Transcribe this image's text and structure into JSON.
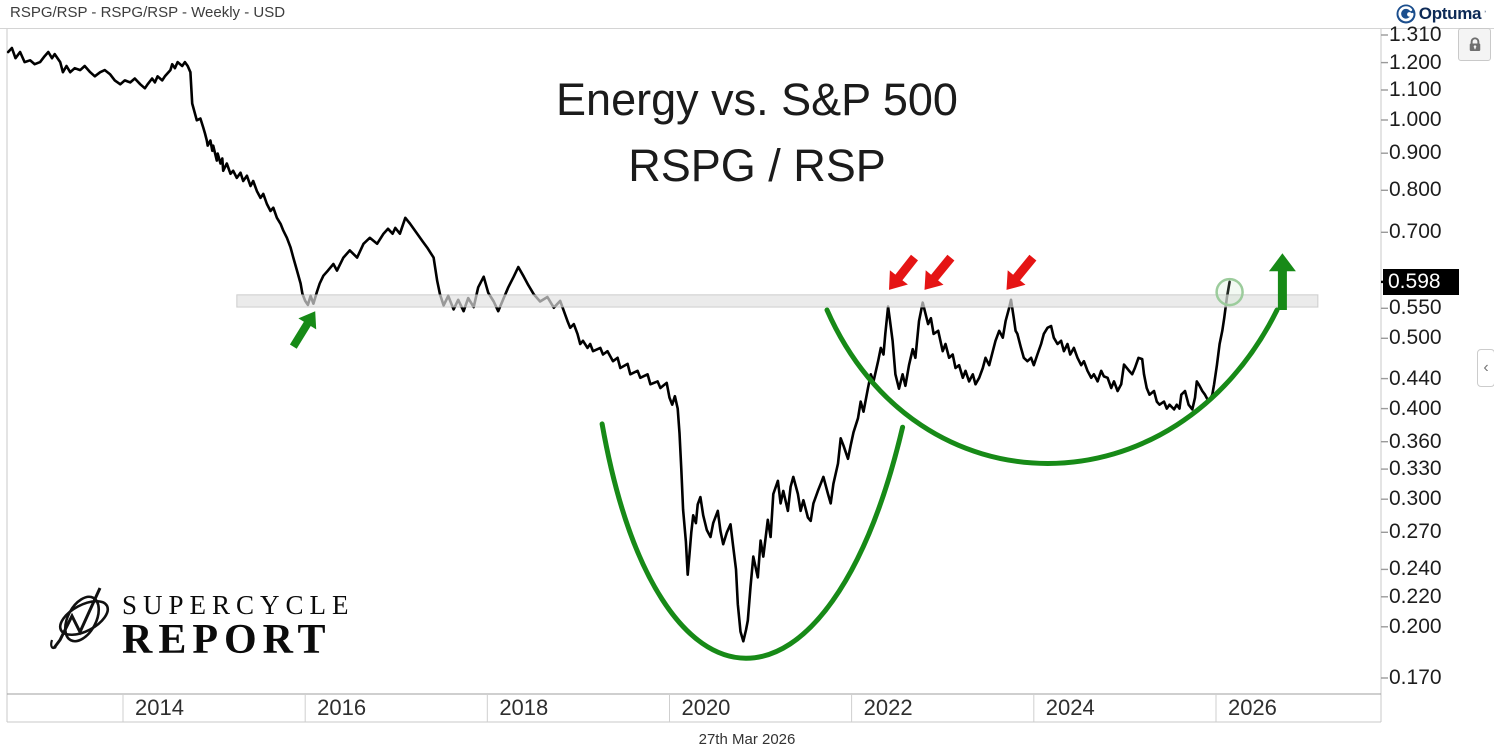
{
  "window": {
    "title": "RSPG/RSP - RSPG/RSP - Weekly - USD",
    "brand": "Optuma"
  },
  "chart_title": {
    "line1": "Energy vs. S&P 500",
    "line2": "RSPG / RSP"
  },
  "watermark": {
    "line1": "SUPERCYCLE",
    "line2": "REPORT"
  },
  "footer": {
    "date_label": "27th Mar 2026"
  },
  "price_axis": {
    "ticks": [
      "1.310",
      "1.200",
      "1.100",
      "1.000",
      "0.900",
      "0.800",
      "0.700",
      "0.550",
      "0.500",
      "0.440",
      "0.400",
      "0.360",
      "0.330",
      "0.300",
      "0.270",
      "0.240",
      "0.220",
      "0.200",
      "0.170"
    ],
    "last_price": "0.598"
  },
  "time_axis": {
    "years": [
      2014,
      2016,
      2018,
      2020,
      2022,
      2024,
      2026
    ]
  },
  "colors": {
    "price_line": "#000000",
    "accent_green": "#178a17",
    "alert_red": "#e51414",
    "band_fill": "rgba(226,226,226,0.68)",
    "band_stroke": "rgba(175,175,175,0.55)",
    "circle_green": "#9ccc9c",
    "frame": "#c8c8c8",
    "tick": "#9a9a9a",
    "last_price_bg": "#000000",
    "brand_blue": "#1b4e8d"
  },
  "chart_data": {
    "type": "line",
    "title": "Energy vs. S&P 500",
    "subtitle": "RSPG / RSP",
    "series_name": "RSPG/RSP Weekly USD",
    "y_scale": "log",
    "xlim": [
      2012.74,
      2027.83
    ],
    "ylim": [
      0.162,
      1.331
    ],
    "x_ticks": [
      2014,
      2016,
      2018,
      2020,
      2022,
      2024,
      2026
    ],
    "y_ticks": [
      1.31,
      1.2,
      1.1,
      1.0,
      0.9,
      0.8,
      0.7,
      0.55,
      0.5,
      0.44,
      0.4,
      0.36,
      0.33,
      0.3,
      0.27,
      0.24,
      0.22,
      0.2,
      0.17
    ],
    "last_value": 0.598,
    "points": [
      [
        2012.74,
        1.241
      ],
      [
        2012.78,
        1.257
      ],
      [
        2012.82,
        1.217
      ],
      [
        2012.87,
        1.241
      ],
      [
        2012.92,
        1.202
      ],
      [
        2012.98,
        1.209
      ],
      [
        2013.03,
        1.194
      ],
      [
        2013.09,
        1.202
      ],
      [
        2013.14,
        1.225
      ],
      [
        2013.18,
        1.241
      ],
      [
        2013.22,
        1.217
      ],
      [
        2013.25,
        1.233
      ],
      [
        2013.31,
        1.202
      ],
      [
        2013.34,
        1.164
      ],
      [
        2013.38,
        1.187
      ],
      [
        2013.42,
        1.164
      ],
      [
        2013.47,
        1.179
      ],
      [
        2013.53,
        1.172
      ],
      [
        2013.58,
        1.187
      ],
      [
        2013.64,
        1.164
      ],
      [
        2013.69,
        1.149
      ],
      [
        2013.75,
        1.164
      ],
      [
        2013.8,
        1.172
      ],
      [
        2013.86,
        1.156
      ],
      [
        2013.91,
        1.134
      ],
      [
        2013.97,
        1.12
      ],
      [
        2014.02,
        1.134
      ],
      [
        2014.08,
        1.127
      ],
      [
        2014.13,
        1.141
      ],
      [
        2014.19,
        1.12
      ],
      [
        2014.24,
        1.106
      ],
      [
        2014.27,
        1.12
      ],
      [
        2014.32,
        1.141
      ],
      [
        2014.35,
        1.127
      ],
      [
        2014.38,
        1.149
      ],
      [
        2014.43,
        1.134
      ],
      [
        2014.46,
        1.149
      ],
      [
        2014.52,
        1.172
      ],
      [
        2014.54,
        1.194
      ],
      [
        2014.57,
        1.179
      ],
      [
        2014.6,
        1.202
      ],
      [
        2014.65,
        1.187
      ],
      [
        2014.68,
        1.202
      ],
      [
        2014.71,
        1.187
      ],
      [
        2014.74,
        1.164
      ],
      [
        2014.76,
        1.054
      ],
      [
        2014.81,
        0.999
      ],
      [
        2014.85,
        1.005
      ],
      [
        2014.88,
        0.977
      ],
      [
        2014.9,
        0.958
      ],
      [
        2014.92,
        0.937
      ],
      [
        2014.93,
        0.922
      ],
      [
        2014.96,
        0.937
      ],
      [
        2014.98,
        0.907
      ],
      [
        2014.99,
        0.922
      ],
      [
        2015.03,
        0.879
      ],
      [
        2015.04,
        0.899
      ],
      [
        2015.07,
        0.871
      ],
      [
        2015.09,
        0.885
      ],
      [
        2015.1,
        0.851
      ],
      [
        2015.14,
        0.871
      ],
      [
        2015.18,
        0.843
      ],
      [
        2015.21,
        0.851
      ],
      [
        2015.25,
        0.832
      ],
      [
        2015.29,
        0.846
      ],
      [
        2015.32,
        0.824
      ],
      [
        2015.36,
        0.838
      ],
      [
        2015.4,
        0.811
      ],
      [
        2015.43,
        0.824
      ],
      [
        2015.47,
        0.798
      ],
      [
        2015.51,
        0.781
      ],
      [
        2015.54,
        0.791
      ],
      [
        2015.58,
        0.766
      ],
      [
        2015.62,
        0.749
      ],
      [
        2015.65,
        0.757
      ],
      [
        2015.69,
        0.733
      ],
      [
        2015.73,
        0.719
      ],
      [
        2015.76,
        0.704
      ],
      [
        2015.8,
        0.688
      ],
      [
        2015.84,
        0.667
      ],
      [
        2015.87,
        0.646
      ],
      [
        2015.91,
        0.62
      ],
      [
        2015.95,
        0.595
      ],
      [
        2015.97,
        0.576
      ],
      [
        2016.0,
        0.563
      ],
      [
        2016.03,
        0.556
      ],
      [
        2016.06,
        0.572
      ],
      [
        2016.09,
        0.558
      ],
      [
        2016.13,
        0.58
      ],
      [
        2016.16,
        0.595
      ],
      [
        2016.2,
        0.61
      ],
      [
        2016.25,
        0.62
      ],
      [
        2016.31,
        0.633
      ],
      [
        2016.35,
        0.62
      ],
      [
        2016.42,
        0.646
      ],
      [
        2016.49,
        0.661
      ],
      [
        2016.57,
        0.646
      ],
      [
        2016.64,
        0.675
      ],
      [
        2016.71,
        0.688
      ],
      [
        2016.79,
        0.675
      ],
      [
        2016.86,
        0.697
      ],
      [
        2016.91,
        0.708
      ],
      [
        2016.96,
        0.697
      ],
      [
        2016.99,
        0.71
      ],
      [
        2017.04,
        0.697
      ],
      [
        2017.1,
        0.733
      ],
      [
        2017.15,
        0.72
      ],
      [
        2017.23,
        0.697
      ],
      [
        2017.29,
        0.68
      ],
      [
        2017.34,
        0.667
      ],
      [
        2017.41,
        0.646
      ],
      [
        2017.45,
        0.6
      ],
      [
        2017.48,
        0.575
      ],
      [
        2017.52,
        0.555
      ],
      [
        2017.57,
        0.572
      ],
      [
        2017.63,
        0.548
      ],
      [
        2017.68,
        0.565
      ],
      [
        2017.74,
        0.545
      ],
      [
        2017.79,
        0.568
      ],
      [
        2017.85,
        0.552
      ],
      [
        2017.9,
        0.588
      ],
      [
        2017.96,
        0.608
      ],
      [
        2018.01,
        0.578
      ],
      [
        2018.07,
        0.562
      ],
      [
        2018.12,
        0.545
      ],
      [
        2018.18,
        0.568
      ],
      [
        2018.23,
        0.588
      ],
      [
        2018.29,
        0.608
      ],
      [
        2018.34,
        0.627
      ],
      [
        2018.4,
        0.608
      ],
      [
        2018.45,
        0.592
      ],
      [
        2018.51,
        0.575
      ],
      [
        2018.58,
        0.562
      ],
      [
        2018.66,
        0.57
      ],
      [
        2018.73,
        0.551
      ],
      [
        2018.8,
        0.563
      ],
      [
        2018.88,
        0.528
      ],
      [
        2018.91,
        0.517
      ],
      [
        2018.95,
        0.523
      ],
      [
        2018.99,
        0.507
      ],
      [
        2019.02,
        0.491
      ],
      [
        2019.05,
        0.496
      ],
      [
        2019.1,
        0.485
      ],
      [
        2019.13,
        0.491
      ],
      [
        2019.16,
        0.48
      ],
      [
        2019.24,
        0.485
      ],
      [
        2019.27,
        0.475
      ],
      [
        2019.32,
        0.48
      ],
      [
        2019.38,
        0.465
      ],
      [
        2019.43,
        0.47
      ],
      [
        2019.46,
        0.455
      ],
      [
        2019.54,
        0.461
      ],
      [
        2019.57,
        0.446
      ],
      [
        2019.65,
        0.451
      ],
      [
        2019.68,
        0.441
      ],
      [
        2019.76,
        0.446
      ],
      [
        2019.79,
        0.432
      ],
      [
        2019.87,
        0.436
      ],
      [
        2019.9,
        0.427
      ],
      [
        2019.93,
        0.43
      ],
      [
        2019.97,
        0.434
      ],
      [
        2020.0,
        0.414
      ],
      [
        2020.03,
        0.405
      ],
      [
        2020.06,
        0.416
      ],
      [
        2020.09,
        0.4
      ],
      [
        2020.11,
        0.37
      ],
      [
        2020.13,
        0.33
      ],
      [
        2020.15,
        0.29
      ],
      [
        2020.18,
        0.262
      ],
      [
        2020.2,
        0.236
      ],
      [
        2020.22,
        0.252
      ],
      [
        2020.24,
        0.27
      ],
      [
        2020.26,
        0.285
      ],
      [
        2020.29,
        0.278
      ],
      [
        2020.31,
        0.295
      ],
      [
        2020.34,
        0.302
      ],
      [
        2020.37,
        0.285
      ],
      [
        2020.41,
        0.272
      ],
      [
        2020.45,
        0.266
      ],
      [
        2020.48,
        0.278
      ],
      [
        2020.53,
        0.289
      ],
      [
        2020.56,
        0.271
      ],
      [
        2020.59,
        0.26
      ],
      [
        2020.63,
        0.27
      ],
      [
        2020.67,
        0.277
      ],
      [
        2020.7,
        0.258
      ],
      [
        2020.73,
        0.24
      ],
      [
        2020.75,
        0.215
      ],
      [
        2020.78,
        0.197
      ],
      [
        2020.81,
        0.191
      ],
      [
        2020.84,
        0.198
      ],
      [
        2020.86,
        0.204
      ],
      [
        2020.89,
        0.227
      ],
      [
        2020.92,
        0.25
      ],
      [
        2020.97,
        0.234
      ],
      [
        2021.0,
        0.263
      ],
      [
        2021.03,
        0.25
      ],
      [
        2021.08,
        0.281
      ],
      [
        2021.11,
        0.266
      ],
      [
        2021.14,
        0.305
      ],
      [
        2021.19,
        0.318
      ],
      [
        2021.22,
        0.296
      ],
      [
        2021.25,
        0.308
      ],
      [
        2021.3,
        0.289
      ],
      [
        2021.33,
        0.312
      ],
      [
        2021.36,
        0.322
      ],
      [
        2021.41,
        0.305
      ],
      [
        2021.44,
        0.289
      ],
      [
        2021.47,
        0.299
      ],
      [
        2021.52,
        0.283
      ],
      [
        2021.55,
        0.28
      ],
      [
        2021.58,
        0.296
      ],
      [
        2021.63,
        0.308
      ],
      [
        2021.66,
        0.315
      ],
      [
        2021.69,
        0.322
      ],
      [
        2021.74,
        0.305
      ],
      [
        2021.77,
        0.296
      ],
      [
        2021.8,
        0.315
      ],
      [
        2021.85,
        0.336
      ],
      [
        2021.88,
        0.364
      ],
      [
        2021.91,
        0.356
      ],
      [
        2021.96,
        0.341
      ],
      [
        2021.99,
        0.356
      ],
      [
        2022.02,
        0.371
      ],
      [
        2022.07,
        0.388
      ],
      [
        2022.1,
        0.409
      ],
      [
        2022.13,
        0.396
      ],
      [
        2022.18,
        0.427
      ],
      [
        2022.21,
        0.446
      ],
      [
        2022.24,
        0.436
      ],
      [
        2022.29,
        0.465
      ],
      [
        2022.32,
        0.485
      ],
      [
        2022.35,
        0.475
      ],
      [
        2022.37,
        0.507
      ],
      [
        2022.4,
        0.553
      ],
      [
        2022.42,
        0.53
      ],
      [
        2022.45,
        0.496
      ],
      [
        2022.48,
        0.446
      ],
      [
        2022.52,
        0.426
      ],
      [
        2022.56,
        0.446
      ],
      [
        2022.59,
        0.43
      ],
      [
        2022.63,
        0.459
      ],
      [
        2022.67,
        0.483
      ],
      [
        2022.7,
        0.47
      ],
      [
        2022.74,
        0.528
      ],
      [
        2022.78,
        0.56
      ],
      [
        2022.84,
        0.523
      ],
      [
        2022.87,
        0.533
      ],
      [
        2022.9,
        0.507
      ],
      [
        2022.95,
        0.512
      ],
      [
        2023.0,
        0.48
      ],
      [
        2023.03,
        0.491
      ],
      [
        2023.07,
        0.47
      ],
      [
        2023.11,
        0.475
      ],
      [
        2023.14,
        0.455
      ],
      [
        2023.18,
        0.459
      ],
      [
        2023.22,
        0.441
      ],
      [
        2023.25,
        0.451
      ],
      [
        2023.29,
        0.436
      ],
      [
        2023.33,
        0.446
      ],
      [
        2023.36,
        0.432
      ],
      [
        2023.4,
        0.441
      ],
      [
        2023.44,
        0.455
      ],
      [
        2023.47,
        0.47
      ],
      [
        2023.51,
        0.459
      ],
      [
        2023.55,
        0.48
      ],
      [
        2023.58,
        0.496
      ],
      [
        2023.62,
        0.512
      ],
      [
        2023.66,
        0.501
      ],
      [
        2023.69,
        0.528
      ],
      [
        2023.73,
        0.551
      ],
      [
        2023.75,
        0.565
      ],
      [
        2023.78,
        0.533
      ],
      [
        2023.8,
        0.512
      ],
      [
        2023.82,
        0.507
      ],
      [
        2023.86,
        0.485
      ],
      [
        2023.89,
        0.47
      ],
      [
        2023.93,
        0.465
      ],
      [
        2023.97,
        0.47
      ],
      [
        2024.0,
        0.459
      ],
      [
        2024.04,
        0.475
      ],
      [
        2024.08,
        0.491
      ],
      [
        2024.11,
        0.507
      ],
      [
        2024.15,
        0.517
      ],
      [
        2024.19,
        0.52
      ],
      [
        2024.22,
        0.501
      ],
      [
        2024.26,
        0.491
      ],
      [
        2024.3,
        0.496
      ],
      [
        2024.33,
        0.48
      ],
      [
        2024.37,
        0.491
      ],
      [
        2024.4,
        0.475
      ],
      [
        2024.44,
        0.485
      ],
      [
        2024.48,
        0.47
      ],
      [
        2024.52,
        0.459
      ],
      [
        2024.55,
        0.465
      ],
      [
        2024.59,
        0.451
      ],
      [
        2024.63,
        0.441
      ],
      [
        2024.66,
        0.446
      ],
      [
        2024.7,
        0.436
      ],
      [
        2024.74,
        0.451
      ],
      [
        2024.77,
        0.443
      ],
      [
        2024.81,
        0.441
      ],
      [
        2024.85,
        0.427
      ],
      [
        2024.88,
        0.436
      ],
      [
        2024.92,
        0.423
      ],
      [
        2024.96,
        0.432
      ],
      [
        2024.99,
        0.46
      ],
      [
        2025.04,
        0.452
      ],
      [
        2025.08,
        0.446
      ],
      [
        2025.11,
        0.455
      ],
      [
        2025.15,
        0.47
      ],
      [
        2025.19,
        0.468
      ],
      [
        2025.21,
        0.446
      ],
      [
        2025.24,
        0.427
      ],
      [
        2025.27,
        0.418
      ],
      [
        2025.32,
        0.423
      ],
      [
        2025.35,
        0.409
      ],
      [
        2025.38,
        0.405
      ],
      [
        2025.43,
        0.409
      ],
      [
        2025.46,
        0.4
      ],
      [
        2025.49,
        0.405
      ],
      [
        2025.54,
        0.399
      ],
      [
        2025.57,
        0.405
      ],
      [
        2025.6,
        0.4
      ],
      [
        2025.62,
        0.418
      ],
      [
        2025.66,
        0.423
      ],
      [
        2025.7,
        0.405
      ],
      [
        2025.74,
        0.399
      ],
      [
        2025.77,
        0.414
      ],
      [
        2025.79,
        0.436
      ],
      [
        2025.81,
        0.432
      ],
      [
        2025.85,
        0.423
      ],
      [
        2025.88,
        0.418
      ],
      [
        2025.92,
        0.409
      ],
      [
        2025.96,
        0.418
      ],
      [
        2025.98,
        0.432
      ],
      [
        2026.01,
        0.459
      ],
      [
        2026.04,
        0.491
      ],
      [
        2026.07,
        0.512
      ],
      [
        2026.09,
        0.533
      ],
      [
        2026.12,
        0.569
      ],
      [
        2026.15,
        0.598
      ]
    ],
    "annotations": {
      "resistance_zone": {
        "year_start": 2015.25,
        "year_end": 2027.12,
        "value_low": 0.552,
        "value_high": 0.574
      },
      "cups": [
        {
          "year_start": 2019.26,
          "value_start": 0.381,
          "year_end": 2022.56,
          "value_end": 0.377,
          "year_bottom": 2020.78,
          "value_bottom": 0.181
        },
        {
          "year_start": 2021.73,
          "value_start": 0.547,
          "year_end": 2026.67,
          "value_end": 0.547,
          "year_bottom": 2024.2,
          "value_bottom": 0.336
        }
      ],
      "red_arrows": [
        {
          "tail": [
            2022.69,
            0.646
          ],
          "head": [
            2022.41,
            0.583
          ]
        },
        {
          "tail": [
            2023.09,
            0.646
          ],
          "head": [
            2022.8,
            0.583
          ]
        },
        {
          "tail": [
            2023.99,
            0.646
          ],
          "head": [
            2023.7,
            0.583
          ]
        }
      ],
      "green_arrows": [
        {
          "tail": [
            2015.87,
            0.487
          ],
          "head": [
            2016.11,
            0.545
          ]
        },
        {
          "tail": [
            2026.73,
            0.547
          ],
          "head": [
            2026.73,
            0.655
          ]
        }
      ],
      "highlight_circle": {
        "year": 2026.15,
        "value": 0.579,
        "radius_px": 13
      }
    }
  }
}
